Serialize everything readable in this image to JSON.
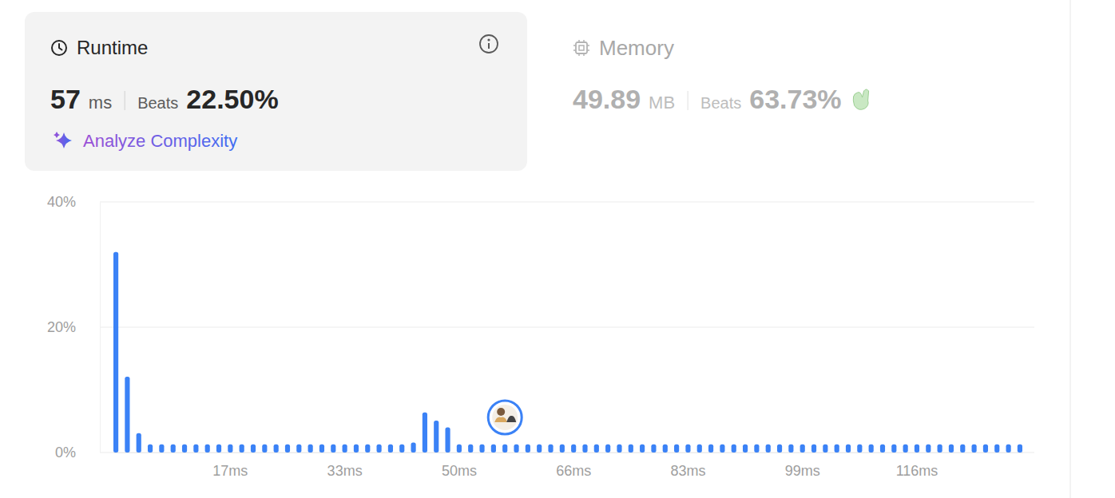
{
  "runtime": {
    "title": "Runtime",
    "value": 57,
    "unit": "ms",
    "beats_label": "Beats",
    "beats": "22.50%",
    "action": "Analyze Complexity"
  },
  "memory": {
    "title": "Memory",
    "value": 49.89,
    "unit": "MB",
    "beats_label": "Beats",
    "beats": "63.73%"
  },
  "chart_data": {
    "type": "bar",
    "categories": [
      null,
      null,
      null,
      null,
      null,
      null,
      null,
      null,
      null,
      null,
      "17ms",
      null,
      null,
      null,
      null,
      null,
      null,
      null,
      null,
      null,
      "33ms",
      null,
      null,
      null,
      null,
      null,
      null,
      null,
      null,
      null,
      "50ms",
      null,
      null,
      null,
      null,
      null,
      null,
      null,
      null,
      null,
      "66ms",
      null,
      null,
      null,
      null,
      null,
      null,
      null,
      null,
      null,
      "83ms",
      null,
      null,
      null,
      null,
      null,
      null,
      null,
      null,
      null,
      "99ms",
      null,
      null,
      null,
      null,
      null,
      null,
      null,
      null,
      null,
      "116ms",
      null,
      null,
      null,
      null,
      null,
      null,
      null,
      null,
      null
    ],
    "values": [
      32.0,
      12.1,
      3.1,
      1.3,
      1.3,
      1.3,
      1.3,
      1.3,
      1.3,
      1.3,
      1.3,
      1.3,
      1.3,
      1.3,
      1.3,
      1.3,
      1.3,
      1.3,
      1.3,
      1.3,
      1.3,
      1.3,
      1.3,
      1.3,
      1.3,
      1.3,
      1.6,
      6.4,
      5.1,
      4.0,
      1.3,
      1.3,
      1.3,
      1.3,
      1.3,
      1.3,
      1.3,
      1.3,
      1.3,
      1.3,
      1.3,
      1.3,
      1.3,
      1.3,
      1.3,
      1.3,
      1.3,
      1.3,
      1.3,
      1.3,
      1.3,
      1.3,
      1.3,
      1.3,
      1.3,
      1.3,
      1.3,
      1.3,
      1.3,
      1.3,
      1.3,
      1.3,
      1.3,
      1.3,
      1.3,
      1.3,
      1.3,
      1.3,
      1.3,
      1.3,
      1.3,
      1.3,
      1.3,
      1.3,
      1.3,
      1.3,
      1.3,
      1.3,
      1.3,
      1.3
    ],
    "color": "#3b82f6",
    "ylim": [
      0,
      40
    ],
    "yticks": [
      {
        "value": 0,
        "label": "0%"
      },
      {
        "value": 20,
        "label": "20%"
      },
      {
        "value": 40,
        "label": "40%"
      }
    ],
    "grid": true
  }
}
